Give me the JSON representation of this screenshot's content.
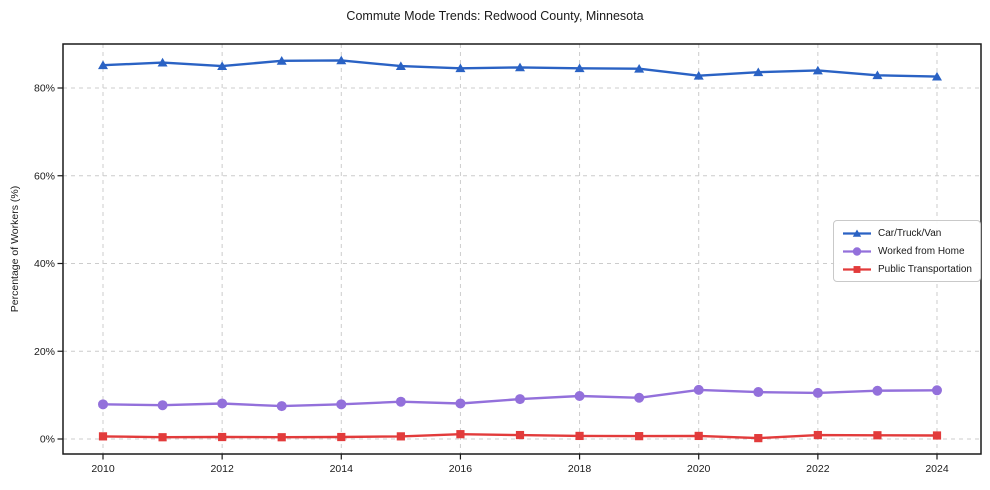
{
  "chart_data": {
    "type": "line",
    "title": "Commute Mode Trends: Redwood County, Minnesota",
    "xlabel": "",
    "ylabel": "Percentage of Workers (%)",
    "x": [
      2010,
      2011,
      2012,
      2013,
      2014,
      2015,
      2016,
      2017,
      2018,
      2019,
      2020,
      2021,
      2022,
      2023,
      2024
    ],
    "x_tick_years": [
      2010,
      2012,
      2014,
      2016,
      2018,
      2020,
      2022,
      2024
    ],
    "x_tick_labels": [
      "2010",
      "2012",
      "2014",
      "2016",
      "2018",
      "2020",
      "2022",
      "2024"
    ],
    "y_tick_values": [
      0,
      20,
      40,
      60,
      80
    ],
    "y_tick_labels": [
      "0%",
      "20%",
      "40%",
      "60%",
      "80%"
    ],
    "ylim": [
      -3.4,
      90.1
    ],
    "xlim": [
      2009.3,
      2024.75
    ],
    "grid": true,
    "legend_position": "center right",
    "series": [
      {
        "name": "Car/Truck/Van",
        "color": "#2a62c4",
        "marker": "triangle",
        "values": [
          85.2,
          85.8,
          85.0,
          86.2,
          86.3,
          85.0,
          84.5,
          84.7,
          84.5,
          84.4,
          82.8,
          83.6,
          84.0,
          82.9,
          82.6
        ]
      },
      {
        "name": "Worked from Home",
        "color": "#9370db",
        "marker": "circle",
        "values": [
          7.9,
          7.7,
          8.1,
          7.5,
          7.9,
          8.5,
          8.1,
          9.1,
          9.8,
          9.4,
          11.2,
          10.7,
          10.5,
          11.0,
          11.1
        ]
      },
      {
        "name": "Public Transportation",
        "color": "#e23b3b",
        "marker": "square",
        "values": [
          0.6,
          0.4,
          0.45,
          0.4,
          0.45,
          0.6,
          1.1,
          0.9,
          0.7,
          0.65,
          0.7,
          0.2,
          0.9,
          0.85,
          0.8
        ]
      }
    ]
  },
  "colors": {
    "grid": "#cccccc",
    "spine": "#1a1a1a",
    "tick_text": "#1a1a1a",
    "legend_border": "#c9c9c9"
  }
}
